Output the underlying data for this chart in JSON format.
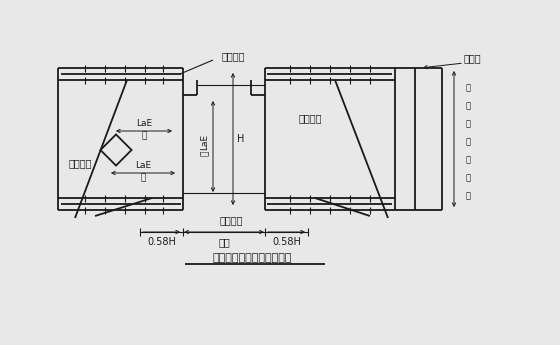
{
  "bg_color": "#e8e8e8",
  "line_color": "#1a1a1a",
  "title": "承台中井坑配筋示意（一）",
  "dim_label_left": "0.58H",
  "dim_label_mid": "井宽",
  "dim_label_right": "0.58H",
  "label_cheng_shang_top": "承台上筋",
  "label_cheng_shang_mid": "承台上筋",
  "label_cheng_xia_left": "承台下筋",
  "label_cheng_xia_bot": "承台下筋",
  "label_lae1": "LaE",
  "label_hu1": "胡",
  "label_lae2": "LaE",
  "label_hu2": "胡",
  "label_lae3": "LaE",
  "label_jing3": "筋",
  "label_H": "H",
  "label_jichuding": "基础顶",
  "label_right_vert": "桩顶嵌入承台深"
}
